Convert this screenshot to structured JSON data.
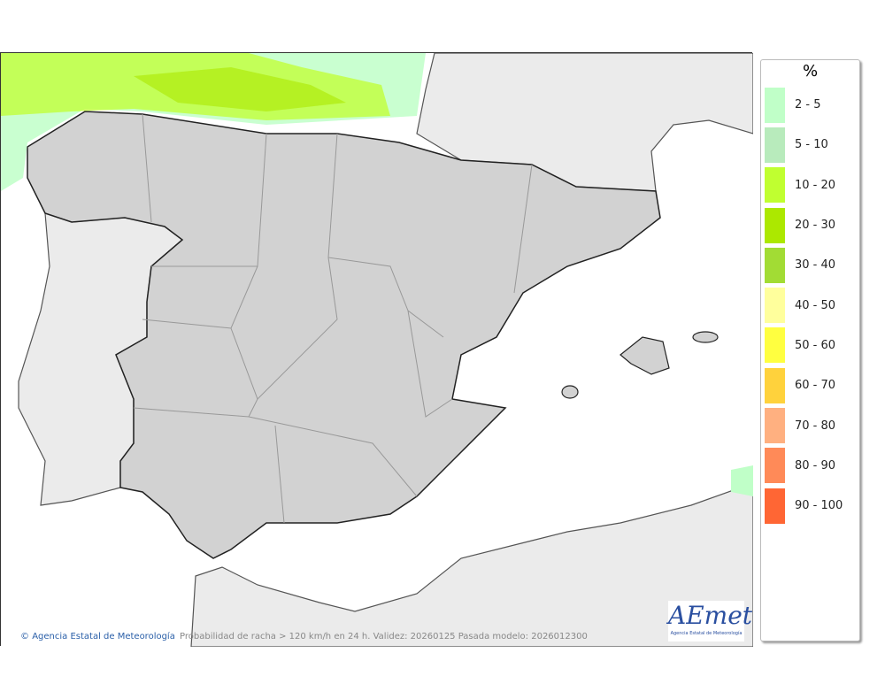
{
  "map": {
    "credit": "Agencia Estatal de Meteorología",
    "caption": "Probabilidad de racha > 120 km/h en 24 h. Validez: 20260125 Pasada modelo: 2026012300",
    "logo_text": "AEmet",
    "logo_subtitle": "Agencia Estatal de Meteorología",
    "colors": {
      "sea": "#ffffff",
      "foreign_land": "#ebebeb",
      "spain_land": "#d2d2d2"
    }
  },
  "legend": {
    "unit": "%",
    "items": [
      {
        "label": "2 - 5",
        "color": "#c0ffc8"
      },
      {
        "label": "5 - 10",
        "color": "#b8ebbc"
      },
      {
        "label": "10 - 20",
        "color": "#c0ff30"
      },
      {
        "label": "20 - 30",
        "color": "#ace800"
      },
      {
        "label": "30 - 40",
        "color": "#a2dc34"
      },
      {
        "label": "40 - 50",
        "color": "#ffff9c"
      },
      {
        "label": "50 - 60",
        "color": "#ffff40"
      },
      {
        "label": "60 - 70",
        "color": "#ffd23c"
      },
      {
        "label": "70 - 80",
        "color": "#ffb080"
      },
      {
        "label": "80 - 90",
        "color": "#ff8a58"
      },
      {
        "label": "90 - 100",
        "color": "#ff6634"
      }
    ]
  }
}
